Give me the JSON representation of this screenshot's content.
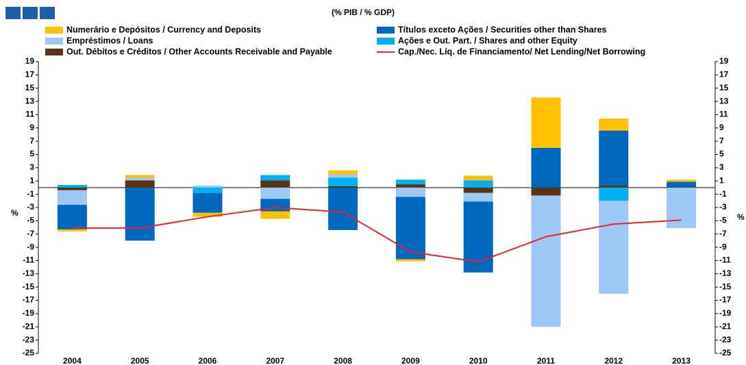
{
  "chart_data": {
    "type": "bar",
    "title": "(% PIB / % GDP)",
    "y_label": "%",
    "y2_label": "%",
    "categories": [
      "2004",
      "2005",
      "2006",
      "2007",
      "2008",
      "2009",
      "2010",
      "2011",
      "2012",
      "2013"
    ],
    "series": [
      {
        "name": "Out. Débitos e Créditos / Other Accounts Receivable and Payable",
        "color": "#5b3513",
        "values": [
          -0.4,
          1.1,
          0,
          1.1,
          0.2,
          0.5,
          -0.8,
          -1.2,
          0.3,
          0.1
        ]
      },
      {
        "name": "Ações e Out. Part. / Shares and other Equity",
        "color": "#00b0f0",
        "values": [
          0.4,
          0,
          -0.8,
          0.8,
          1.3,
          0.7,
          1.1,
          0,
          -2.0,
          0
        ]
      },
      {
        "name": "Empréstimos / Loans",
        "color": "#9dc8f5",
        "values": [
          -2.2,
          0.4,
          0.3,
          -1.7,
          0.5,
          -1.4,
          -1.3,
          -19.8,
          -14.0,
          -6.1
        ]
      },
      {
        "name": "Títulos exceto Ações / Securities other than Shares",
        "color": "#0068bd",
        "values": [
          -3.7,
          -8.0,
          -3.0,
          -1.9,
          -6.4,
          -9.4,
          -10.7,
          6.0,
          8.3,
          0.8
        ]
      },
      {
        "name": "Numerário e Depósitos / Currency and Deposits",
        "color": "#ffc000",
        "values": [
          -0.3,
          0.4,
          -0.6,
          -1.1,
          0.6,
          -0.3,
          0.7,
          7.6,
          1.8,
          0.3
        ]
      },
      {
        "name": "Cap./Nec. Líq. de Financiamento/ Net Lending/Net Borrowing",
        "color": "#e8242a",
        "type": "line",
        "values": [
          -6.1,
          -6.1,
          -4.4,
          -3.0,
          -3.7,
          -9.7,
          -11.2,
          -7.4,
          -5.5,
          -4.9
        ]
      }
    ],
    "ylim": [
      -25,
      19
    ],
    "yticks": [
      -25,
      -23,
      -21,
      -19,
      -17,
      -15,
      -13,
      -11,
      -9,
      -7,
      -5,
      -3,
      -1,
      1,
      3,
      5,
      7,
      9,
      11,
      13,
      15,
      17,
      19
    ],
    "y2lim": [
      -25,
      19
    ],
    "y2ticks": [
      -25,
      -23,
      -21,
      -19,
      -17,
      -15,
      -13,
      -11,
      -9,
      -7,
      -5,
      -3,
      -1,
      1,
      3,
      5,
      7,
      9,
      11,
      13,
      15,
      17,
      19
    ]
  }
}
